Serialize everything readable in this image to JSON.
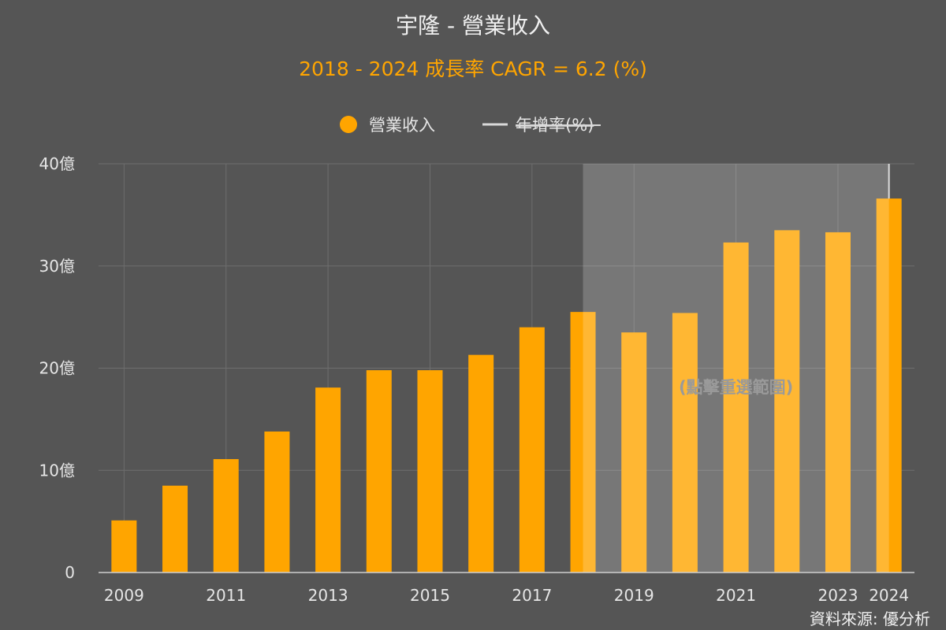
{
  "chart_data": {
    "type": "bar",
    "title": "宇隆 - 營業收入",
    "subtitle": "2018 - 2024 成長率 CAGR = 6.2 (%)",
    "legend": {
      "placement": "top-center",
      "items": [
        {
          "label": "營業收入",
          "color": "#FFA500",
          "marker": "circle"
        },
        {
          "label": "年增率(%)",
          "color": "#d9d9d9",
          "marker": "line",
          "struck_through": true
        }
      ]
    },
    "categories": [
      2009,
      2010,
      2011,
      2012,
      2013,
      2014,
      2015,
      2016,
      2017,
      2018,
      2019,
      2020,
      2021,
      2022,
      2023,
      2024
    ],
    "x_tick_labels": [
      "2009",
      "2011",
      "2013",
      "2015",
      "2017",
      "2019",
      "2021",
      "2023",
      "2024"
    ],
    "series": [
      {
        "name": "營業收入",
        "color": "#FFA500",
        "values": [
          5.1,
          8.5,
          11.1,
          13.8,
          18.1,
          19.8,
          19.8,
          21.3,
          24.0,
          25.5,
          23.5,
          25.4,
          32.3,
          33.5,
          33.3,
          36.6
        ]
      }
    ],
    "y_axis": {
      "min": 0,
      "max": 40,
      "ticks": [
        0,
        10,
        20,
        30,
        40
      ],
      "tick_labels": [
        "0",
        "10億",
        "20億",
        "30億",
        "40億"
      ]
    },
    "grid": true,
    "highlight": {
      "from": 2018,
      "to": 2024,
      "label": "(點擊重選範圍)"
    },
    "source": "資料來源: 優分析",
    "colors": {
      "background": "#555555",
      "bar": "#FFA500",
      "title": "#f0f0f0",
      "subtitle": "#FFA500",
      "grid": "#6e6e6e",
      "axis_text": "#e6e6e6",
      "highlight_fill": "#7a7a7a",
      "highlight_marker": "#d9d9d9"
    }
  }
}
